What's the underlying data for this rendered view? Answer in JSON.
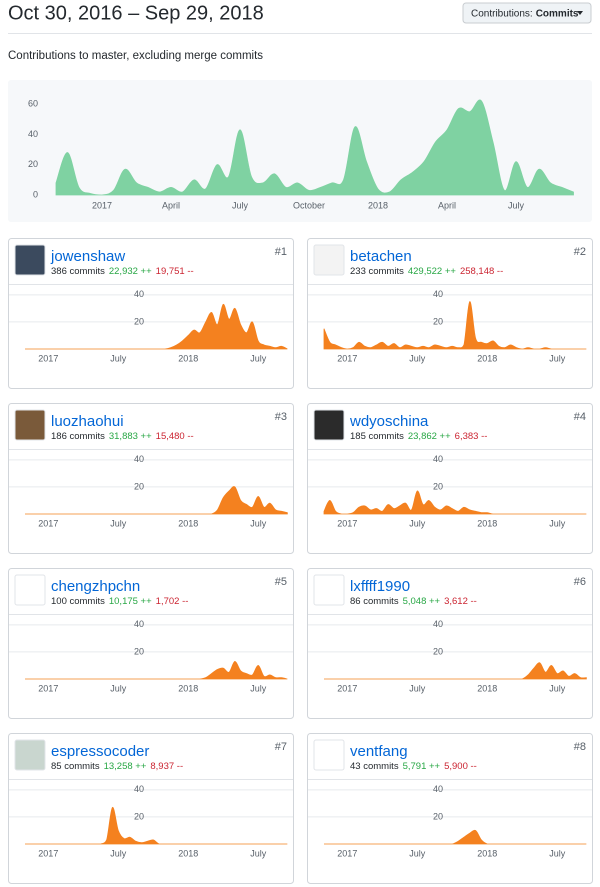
{
  "header": {
    "title": "Oct 30, 2016 – Sep 29, 2018",
    "button": {
      "label": "Contributions:",
      "value": "Commits"
    }
  },
  "subtitle": "Contributions to master, excluding merge commits",
  "chart_data": [
    {
      "type": "area",
      "color": "#7fd2a2",
      "grid": false,
      "categories": [
        null,
        null,
        null,
        null,
        "2017",
        null,
        null,
        null,
        null,
        null,
        "April",
        null,
        null,
        null,
        null,
        null,
        "July",
        null,
        null,
        null,
        null,
        null,
        "October",
        null,
        null,
        null,
        null,
        null,
        "2018",
        null,
        null,
        null,
        null,
        null,
        "April",
        null,
        null,
        null,
        null,
        null,
        "July",
        null,
        null,
        null,
        null,
        null
      ],
      "values": [
        8,
        28,
        5,
        1,
        0,
        3,
        17,
        8,
        5,
        2,
        5,
        2,
        10,
        4,
        20,
        12,
        43,
        12,
        8,
        14,
        5,
        8,
        3,
        5,
        8,
        10,
        45,
        22,
        4,
        2,
        10,
        15,
        22,
        35,
        43,
        57,
        55,
        62,
        35,
        3,
        22,
        5,
        17,
        8,
        5,
        2
      ],
      "ylim": [
        0,
        64
      ],
      "yticks": [
        0,
        20,
        40,
        60
      ]
    },
    {
      "type": "area",
      "color": "#f4811f",
      "grid": true,
      "title": "jowenshaw",
      "commits": "386 commits",
      "additions": "22,932 ++",
      "deletions": "19,751 --",
      "rank": "#1",
      "categories": [
        null,
        null,
        null,
        null,
        "2017",
        null,
        null,
        null,
        null,
        null,
        null,
        null,
        null,
        null,
        null,
        null,
        "July",
        null,
        null,
        null,
        null,
        null,
        null,
        null,
        null,
        null,
        null,
        null,
        "2018",
        null,
        null,
        null,
        null,
        null,
        null,
        null,
        null,
        null,
        null,
        null,
        "July",
        null,
        null,
        null,
        null,
        null
      ],
      "values": [
        0,
        0,
        0,
        0,
        0,
        0,
        0,
        0,
        0,
        0,
        0,
        0,
        0,
        0,
        0,
        0,
        0,
        0,
        0,
        0,
        0,
        0,
        0,
        0,
        0,
        1,
        3,
        6,
        10,
        14,
        12,
        20,
        27,
        18,
        33,
        22,
        30,
        18,
        12,
        20,
        6,
        3,
        2,
        1,
        2,
        0
      ],
      "ylim": [
        0,
        48
      ],
      "yticks": [
        20,
        40
      ]
    },
    {
      "type": "area",
      "color": "#f4811f",
      "grid": true,
      "title": "betachen",
      "commits": "233 commits",
      "additions": "429,522 ++",
      "deletions": "258,148 --",
      "rank": "#2",
      "categories": [
        null,
        null,
        null,
        null,
        "2017",
        null,
        null,
        null,
        null,
        null,
        null,
        null,
        null,
        null,
        null,
        null,
        "July",
        null,
        null,
        null,
        null,
        null,
        null,
        null,
        null,
        null,
        null,
        null,
        "2018",
        null,
        null,
        null,
        null,
        null,
        null,
        null,
        null,
        null,
        null,
        null,
        "July",
        null,
        null,
        null,
        null,
        null
      ],
      "values": [
        15,
        5,
        3,
        1,
        0,
        1,
        5,
        2,
        1,
        3,
        5,
        2,
        4,
        1,
        3,
        2,
        1,
        2,
        1,
        3,
        2,
        1,
        2,
        1,
        3,
        35,
        8,
        5,
        4,
        6,
        2,
        1,
        3,
        1,
        0,
        1,
        0,
        0,
        1,
        0,
        0,
        0,
        0,
        0,
        0,
        0
      ],
      "ylim": [
        0,
        48
      ],
      "yticks": [
        20,
        40
      ]
    },
    {
      "type": "area",
      "color": "#f4811f",
      "grid": true,
      "title": "luozhaohui",
      "commits": "186 commits",
      "additions": "31,883 ++",
      "deletions": "15,480 --",
      "rank": "#3",
      "categories": [
        null,
        null,
        null,
        null,
        "2017",
        null,
        null,
        null,
        null,
        null,
        null,
        null,
        null,
        null,
        null,
        null,
        "July",
        null,
        null,
        null,
        null,
        null,
        null,
        null,
        null,
        null,
        null,
        null,
        "2018",
        null,
        null,
        null,
        null,
        null,
        null,
        null,
        null,
        null,
        null,
        null,
        "July",
        null,
        null,
        null,
        null,
        null
      ],
      "values": [
        0,
        0,
        0,
        0,
        0,
        0,
        0,
        0,
        0,
        0,
        0,
        0,
        0,
        0,
        0,
        0,
        0,
        0,
        0,
        0,
        0,
        0,
        0,
        0,
        0,
        0,
        0,
        0,
        0,
        0,
        0,
        0,
        0,
        3,
        12,
        17,
        20,
        10,
        7,
        5,
        13,
        5,
        8,
        3,
        2,
        1
      ],
      "ylim": [
        0,
        48
      ],
      "yticks": [
        20,
        40
      ]
    },
    {
      "type": "area",
      "color": "#f4811f",
      "grid": true,
      "title": "wdyoschina",
      "commits": "185 commits",
      "additions": "23,862 ++",
      "deletions": "6,383 --",
      "rank": "#4",
      "categories": [
        null,
        null,
        null,
        null,
        "2017",
        null,
        null,
        null,
        null,
        null,
        null,
        null,
        null,
        null,
        null,
        null,
        "July",
        null,
        null,
        null,
        null,
        null,
        null,
        null,
        null,
        null,
        null,
        null,
        "2018",
        null,
        null,
        null,
        null,
        null,
        null,
        null,
        null,
        null,
        null,
        null,
        "July",
        null,
        null,
        null,
        null,
        null
      ],
      "values": [
        2,
        10,
        2,
        0,
        0,
        1,
        5,
        6,
        3,
        4,
        2,
        7,
        4,
        6,
        8,
        3,
        17,
        7,
        10,
        5,
        3,
        6,
        4,
        2,
        5,
        3,
        2,
        1,
        1,
        0,
        0,
        0,
        0,
        0,
        0,
        0,
        0,
        0,
        0,
        0,
        0,
        0,
        0,
        0,
        0,
        0
      ],
      "ylim": [
        0,
        48
      ],
      "yticks": [
        20,
        40
      ]
    },
    {
      "type": "area",
      "color": "#f4811f",
      "grid": true,
      "title": "chengzhpchn",
      "commits": "100 commits",
      "additions": "10,175 ++",
      "deletions": "1,702 --",
      "rank": "#5",
      "categories": [
        null,
        null,
        null,
        null,
        "2017",
        null,
        null,
        null,
        null,
        null,
        null,
        null,
        null,
        null,
        null,
        null,
        "July",
        null,
        null,
        null,
        null,
        null,
        null,
        null,
        null,
        null,
        null,
        null,
        "2018",
        null,
        null,
        null,
        null,
        null,
        null,
        null,
        null,
        null,
        null,
        null,
        "July",
        null,
        null,
        null,
        null,
        null
      ],
      "values": [
        0,
        0,
        0,
        0,
        0,
        0,
        0,
        0,
        0,
        0,
        0,
        0,
        0,
        0,
        0,
        0,
        0,
        0,
        0,
        0,
        0,
        0,
        0,
        0,
        0,
        0,
        0,
        0,
        0,
        0,
        0,
        1,
        4,
        7,
        8,
        5,
        13,
        6,
        4,
        3,
        10,
        2,
        3,
        1,
        1,
        0
      ],
      "ylim": [
        0,
        48
      ],
      "yticks": [
        20,
        40
      ]
    },
    {
      "type": "area",
      "color": "#f4811f",
      "grid": true,
      "title": "lxffff1990",
      "commits": "86 commits",
      "additions": "5,048 ++",
      "deletions": "3,612 --",
      "rank": "#6",
      "categories": [
        null,
        null,
        null,
        null,
        "2017",
        null,
        null,
        null,
        null,
        null,
        null,
        null,
        null,
        null,
        null,
        null,
        "July",
        null,
        null,
        null,
        null,
        null,
        null,
        null,
        null,
        null,
        null,
        null,
        "2018",
        null,
        null,
        null,
        null,
        null,
        null,
        null,
        null,
        null,
        null,
        null,
        "July",
        null,
        null,
        null,
        null,
        null
      ],
      "values": [
        0,
        0,
        0,
        0,
        0,
        0,
        0,
        0,
        0,
        0,
        0,
        0,
        0,
        0,
        0,
        0,
        0,
        0,
        0,
        0,
        0,
        0,
        0,
        0,
        0,
        0,
        0,
        0,
        0,
        0,
        0,
        0,
        0,
        0,
        0,
        3,
        8,
        12,
        5,
        10,
        4,
        6,
        2,
        4,
        1,
        1
      ],
      "ylim": [
        0,
        48
      ],
      "yticks": [
        20,
        40
      ]
    },
    {
      "type": "area",
      "color": "#f4811f",
      "grid": true,
      "title": "espressocoder",
      "commits": "85 commits",
      "additions": "13,258 ++",
      "deletions": "8,937 --",
      "rank": "#7",
      "categories": [
        null,
        null,
        null,
        null,
        "2017",
        null,
        null,
        null,
        null,
        null,
        null,
        null,
        null,
        null,
        null,
        null,
        "July",
        null,
        null,
        null,
        null,
        null,
        null,
        null,
        null,
        null,
        null,
        null,
        "2018",
        null,
        null,
        null,
        null,
        null,
        null,
        null,
        null,
        null,
        null,
        null,
        "July",
        null,
        null,
        null,
        null,
        null
      ],
      "values": [
        0,
        0,
        0,
        0,
        0,
        0,
        0,
        0,
        0,
        0,
        0,
        0,
        0,
        0,
        3,
        27,
        10,
        4,
        5,
        2,
        1,
        2,
        3,
        0,
        0,
        0,
        0,
        0,
        0,
        0,
        0,
        0,
        0,
        0,
        0,
        0,
        0,
        0,
        0,
        0,
        0,
        0,
        0,
        0,
        0,
        0
      ],
      "ylim": [
        0,
        48
      ],
      "yticks": [
        20,
        40
      ]
    },
    {
      "type": "area",
      "color": "#f4811f",
      "grid": true,
      "title": "ventfang",
      "commits": "43 commits",
      "additions": "5,791 ++",
      "deletions": "5,900 --",
      "rank": "#8",
      "categories": [
        null,
        null,
        null,
        null,
        "2017",
        null,
        null,
        null,
        null,
        null,
        null,
        null,
        null,
        null,
        null,
        null,
        "July",
        null,
        null,
        null,
        null,
        null,
        null,
        null,
        null,
        null,
        null,
        null,
        "2018",
        null,
        null,
        null,
        null,
        null,
        null,
        null,
        null,
        null,
        null,
        null,
        "July",
        null,
        null,
        null,
        null,
        null
      ],
      "values": [
        0,
        0,
        0,
        0,
        0,
        0,
        0,
        0,
        0,
        0,
        0,
        0,
        0,
        0,
        0,
        0,
        0,
        0,
        0,
        0,
        0,
        0,
        0,
        2,
        5,
        8,
        10,
        3,
        0,
        0,
        0,
        0,
        0,
        0,
        0,
        0,
        0,
        0,
        0,
        0,
        0,
        0,
        0,
        0,
        0,
        0
      ],
      "ylim": [
        0,
        48
      ],
      "yticks": [
        20,
        40
      ]
    }
  ]
}
